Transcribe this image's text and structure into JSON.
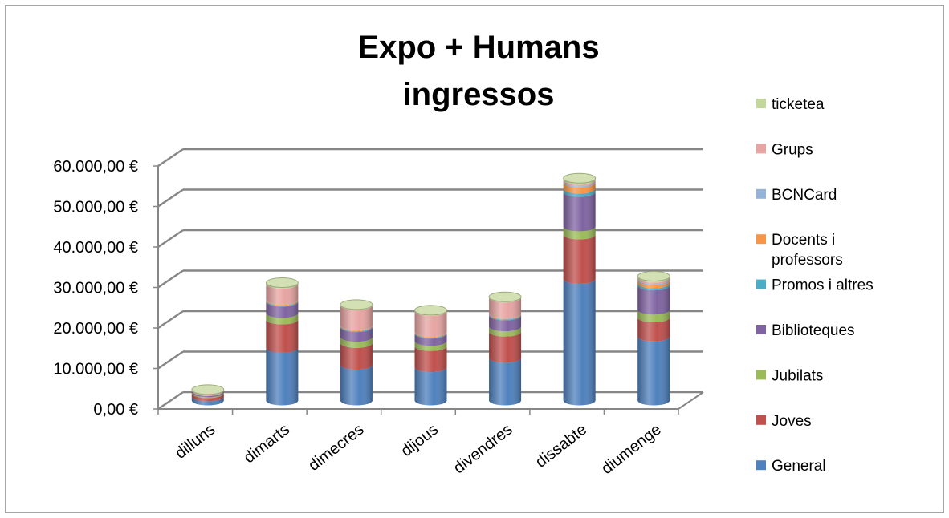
{
  "chart_data": {
    "type": "bar",
    "stacked": true,
    "title_lines": [
      "Expo + Humans",
      "ingressos"
    ],
    "categories": [
      "dilluns",
      "dimarts",
      "dimecres",
      "dijous",
      "divendres",
      "dissabte",
      "diumenge"
    ],
    "y_tick_labels": [
      "0,00 €",
      "10.000,00 €",
      "20.000,00 €",
      "30.000,00 €",
      "40.000,00 €",
      "50.000,00 €",
      "60.000,00 €"
    ],
    "ylim": [
      0,
      60000
    ],
    "grid": true,
    "legend_position": "right",
    "series": [
      {
        "name": "General",
        "color": "#4f81bd",
        "values": [
          1000,
          13000,
          8800,
          8200,
          10500,
          30000,
          15800
        ]
      },
      {
        "name": "Joves",
        "color": "#c0504d",
        "values": [
          800,
          7000,
          5400,
          5200,
          6500,
          11000,
          4700
        ]
      },
      {
        "name": "Jubilats",
        "color": "#9bbb59",
        "values": [
          200,
          1600,
          1500,
          1300,
          1300,
          2000,
          1900
        ]
      },
      {
        "name": "Biblioteques",
        "color": "#8064a2",
        "values": [
          300,
          2800,
          2400,
          1800,
          2700,
          8500,
          6000
        ]
      },
      {
        "name": "Promos i altres",
        "color": "#4bacc6",
        "values": [
          50,
          200,
          200,
          200,
          200,
          800,
          500
        ]
      },
      {
        "name": "Docents i professors",
        "color": "#f79646",
        "values": [
          50,
          200,
          200,
          200,
          200,
          1500,
          700
        ]
      },
      {
        "name": "BCNCard",
        "color": "#95b3d7",
        "values": [
          50,
          100,
          100,
          100,
          100,
          300,
          300
        ]
      },
      {
        "name": "Grups",
        "color": "#e6a4a2",
        "values": [
          200,
          3900,
          4900,
          5100,
          3900,
          400,
          400
        ]
      },
      {
        "name": "ticketea",
        "color": "#c3d69b",
        "values": [
          50,
          300,
          200,
          200,
          200,
          400,
          400
        ]
      }
    ]
  },
  "legend_items": [
    {
      "lines": [
        "ticketea"
      ],
      "color": "#c3d69b"
    },
    {
      "lines": [
        "Grups"
      ],
      "color": "#e6a4a2"
    },
    {
      "lines": [
        "BCNCard"
      ],
      "color": "#95b3d7"
    },
    {
      "lines": [
        "Docents i",
        "professors"
      ],
      "color": "#f79646"
    },
    {
      "lines": [
        "Promos i altres"
      ],
      "color": "#4bacc6"
    },
    {
      "lines": [
        "Biblioteques"
      ],
      "color": "#8064a2"
    },
    {
      "lines": [
        "Jubilats"
      ],
      "color": "#9bbb59"
    },
    {
      "lines": [
        "Joves"
      ],
      "color": "#c0504d"
    },
    {
      "lines": [
        "General"
      ],
      "color": "#4f81bd"
    }
  ]
}
